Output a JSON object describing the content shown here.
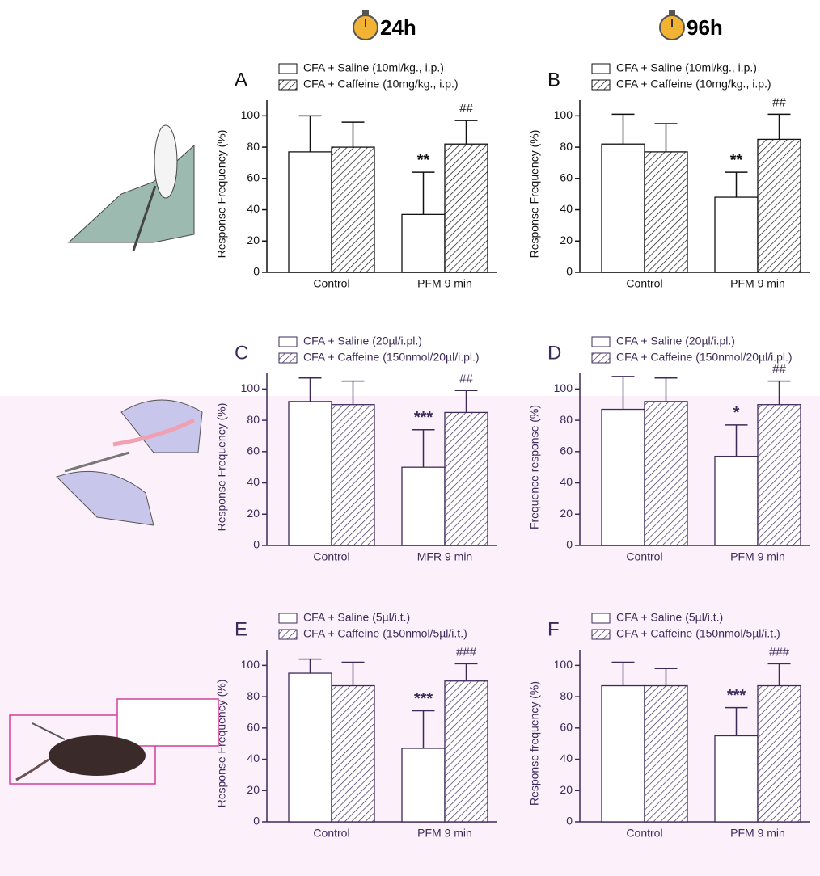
{
  "headers": [
    "24h",
    "96h"
  ],
  "chart_data": [
    {
      "type": "bar",
      "label": "A",
      "ylabel": "Response Frequency (%)",
      "color": "#111111",
      "categories": [
        "Control",
        "PFM 9 min"
      ],
      "ylim": [
        0,
        110
      ],
      "yticks": [
        0,
        20,
        40,
        60,
        80,
        100
      ],
      "series": [
        {
          "name": "CFA + Saline (10ml/kg., i.p.)",
          "color": "#ffffff",
          "hatch": false,
          "values": [
            77,
            37
          ],
          "errors": [
            23,
            27
          ],
          "annotations": [
            null,
            "**"
          ]
        },
        {
          "name": "CFA + Caffeine (10mg/kg., i.p.)",
          "color": "#ffffff",
          "hatch": true,
          "values": [
            80,
            82
          ],
          "errors": [
            16,
            15
          ],
          "annotations": [
            null,
            "##"
          ]
        }
      ]
    },
    {
      "type": "bar",
      "label": "B",
      "ylabel": "Response Frequency (%)",
      "color": "#111111",
      "categories": [
        "Control",
        "PFM 9 min"
      ],
      "ylim": [
        0,
        110
      ],
      "yticks": [
        0,
        20,
        40,
        60,
        80,
        100
      ],
      "series": [
        {
          "name": "CFA + Saline (10ml/kg., i.p.)",
          "color": "#ffffff",
          "hatch": false,
          "values": [
            82,
            48
          ],
          "errors": [
            19,
            16
          ],
          "annotations": [
            null,
            "**"
          ]
        },
        {
          "name": "CFA + Caffeine (10mg/kg., i.p.)",
          "color": "#ffffff",
          "hatch": true,
          "values": [
            77,
            85
          ],
          "errors": [
            18,
            16
          ],
          "annotations": [
            null,
            "##"
          ]
        }
      ]
    },
    {
      "type": "bar",
      "label": "C",
      "ylabel": "Response Frequency (%)",
      "color": "#3d2a5a",
      "categories": [
        "Control",
        "MFR 9 min"
      ],
      "ylim": [
        0,
        110
      ],
      "yticks": [
        0,
        20,
        40,
        60,
        80,
        100
      ],
      "series": [
        {
          "name": "CFA + Saline (20µl/i.pl.)",
          "color": "#ffffff",
          "hatch": false,
          "values": [
            92,
            50
          ],
          "errors": [
            15,
            24
          ],
          "annotations": [
            null,
            "***"
          ]
        },
        {
          "name": "CFA + Caffeine (150nmol/20µl/i.pl.)",
          "color": "#ffffff",
          "hatch": true,
          "values": [
            90,
            85
          ],
          "errors": [
            15,
            14
          ],
          "annotations": [
            null,
            "##"
          ]
        }
      ]
    },
    {
      "type": "bar",
      "label": "D",
      "ylabel": "Frequence response (%)",
      "color": "#3d2a5a",
      "categories": [
        "Control",
        "PFM 9 min"
      ],
      "ylim": [
        0,
        110
      ],
      "yticks": [
        0,
        20,
        40,
        60,
        80,
        100
      ],
      "series": [
        {
          "name": "CFA + Saline (20µl/i.pl.)",
          "color": "#ffffff",
          "hatch": false,
          "values": [
            87,
            57
          ],
          "errors": [
            21,
            20
          ],
          "annotations": [
            null,
            "*"
          ]
        },
        {
          "name": "CFA + Caffeine (150nmol/20µl/i.pl.)",
          "color": "#ffffff",
          "hatch": true,
          "values": [
            92,
            90
          ],
          "errors": [
            15,
            15
          ],
          "annotations": [
            null,
            "##"
          ]
        }
      ]
    },
    {
      "type": "bar",
      "label": "E",
      "ylabel": "Response Frequency (%)",
      "color": "#3d2a5a",
      "categories": [
        "Control",
        "PFM 9 min"
      ],
      "ylim": [
        0,
        110
      ],
      "yticks": [
        0,
        20,
        40,
        60,
        80,
        100
      ],
      "series": [
        {
          "name": "CFA + Saline (5µl/i.t.)",
          "color": "#ffffff",
          "hatch": false,
          "values": [
            95,
            47
          ],
          "errors": [
            9,
            24
          ],
          "annotations": [
            null,
            "***"
          ]
        },
        {
          "name": "CFA + Caffeine (150nmol/5µl/i.t.)",
          "color": "#ffffff",
          "hatch": true,
          "values": [
            87,
            90
          ],
          "errors": [
            15,
            11
          ],
          "annotations": [
            null,
            "###"
          ]
        }
      ]
    },
    {
      "type": "bar",
      "label": "F",
      "ylabel": "Response frequency (%)",
      "color": "#3d2a5a",
      "categories": [
        "Control",
        "PFM 9 min"
      ],
      "ylim": [
        0,
        110
      ],
      "yticks": [
        0,
        20,
        40,
        60,
        80,
        100
      ],
      "series": [
        {
          "name": "CFA + Saline (5µl/i.t.)",
          "color": "#ffffff",
          "hatch": false,
          "values": [
            87,
            55
          ],
          "errors": [
            15,
            18
          ],
          "annotations": [
            null,
            "***"
          ]
        },
        {
          "name": "CFA + Caffeine (150nmol/5µl/i.t.)",
          "color": "#ffffff",
          "hatch": true,
          "values": [
            87,
            87
          ],
          "errors": [
            11,
            14
          ],
          "annotations": [
            null,
            "###"
          ]
        }
      ]
    }
  ]
}
